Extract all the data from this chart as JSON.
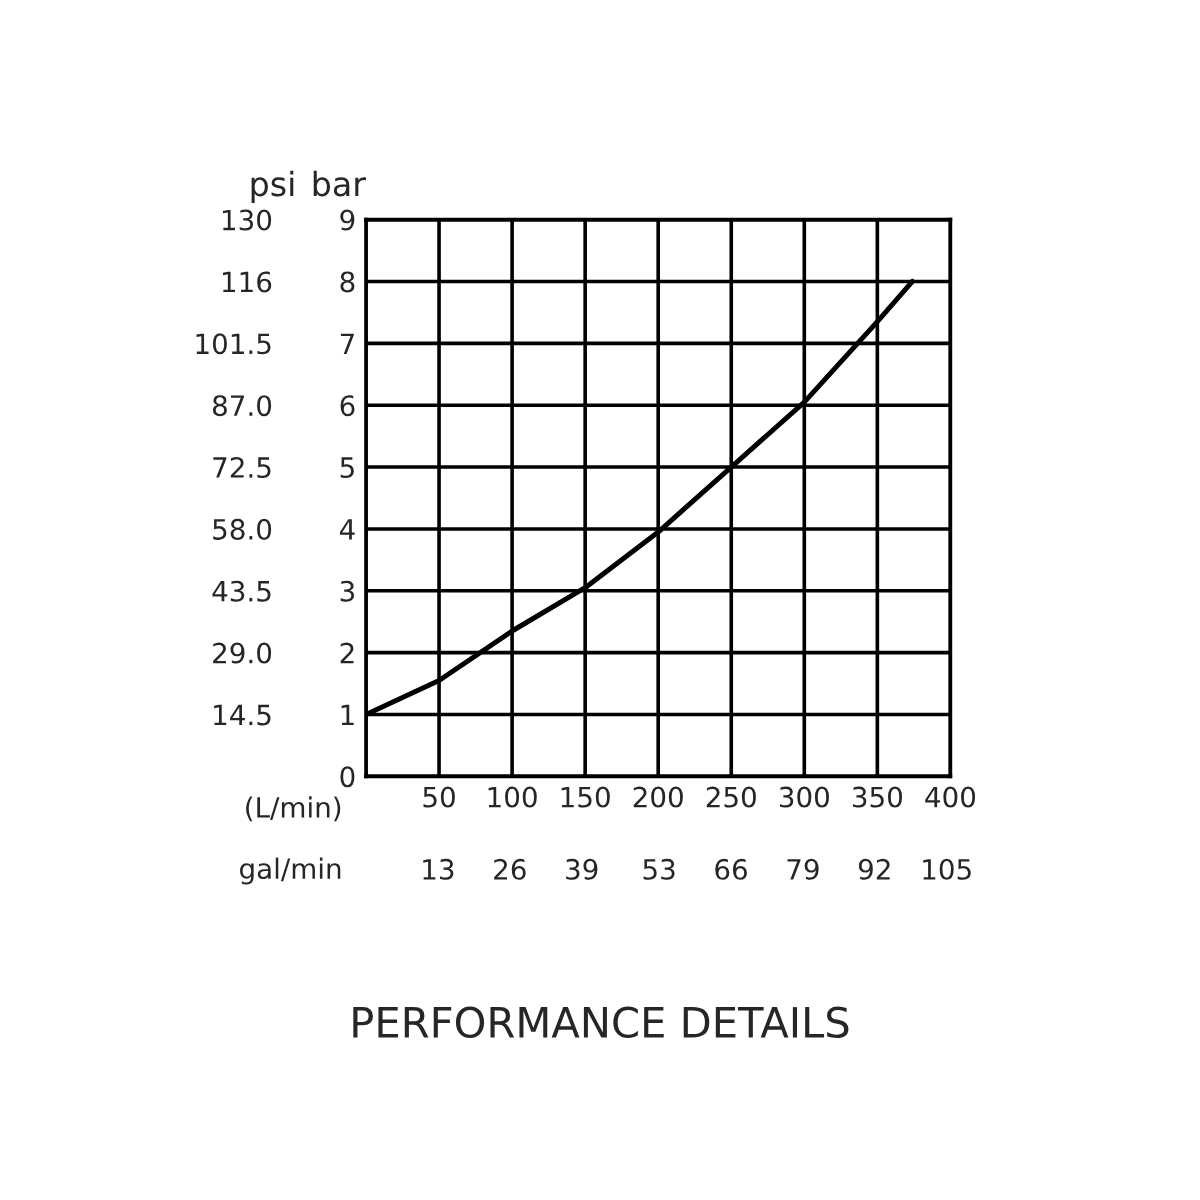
{
  "chart_data": {
    "type": "line",
    "title": "PERFORMANCE DETAILS",
    "xlabel": "(L/min)",
    "x2label": "gal/min",
    "ylabel": "bar",
    "y2label": "psi",
    "series": [
      {
        "color": "#000000",
        "x": [
          0,
          50,
          100,
          150,
          200,
          250,
          300,
          350,
          374
        ],
        "values": [
          1,
          1.55,
          2.35,
          3.05,
          3.95,
          5.0,
          6.05,
          7.35,
          8
        ]
      }
    ],
    "xlim": [
      0,
      400
    ],
    "xticks": [
      {
        "value": 0,
        "label": null
      },
      50,
      100,
      150,
      200,
      250,
      300,
      350,
      400
    ],
    "x2lim": [
      0,
      105.67
    ],
    "x2ticks": [
      13,
      26,
      39,
      53,
      66,
      79,
      92,
      105
    ],
    "ylim": [
      0,
      9
    ],
    "yticks": [
      0,
      1,
      2,
      3,
      4,
      5,
      6,
      7,
      8,
      9
    ],
    "y2lim": [
      0,
      130.5
    ],
    "y2ticks": [
      {
        "value": 14.5,
        "label": "14.5"
      },
      {
        "value": 29.0,
        "label": "29.0"
      },
      {
        "value": 43.5,
        "label": "43.5"
      },
      {
        "value": 58.0,
        "label": "58.0"
      },
      {
        "value": 72.5,
        "label": "72.5"
      },
      {
        "value": 87.0,
        "label": "87.0"
      },
      {
        "value": 101.5,
        "label": "101.5"
      },
      {
        "value": 116,
        "label": "116"
      },
      {
        "value": 130.5,
        "label": "130"
      }
    ],
    "grid": true,
    "marker": "none",
    "line_style": "solid"
  }
}
